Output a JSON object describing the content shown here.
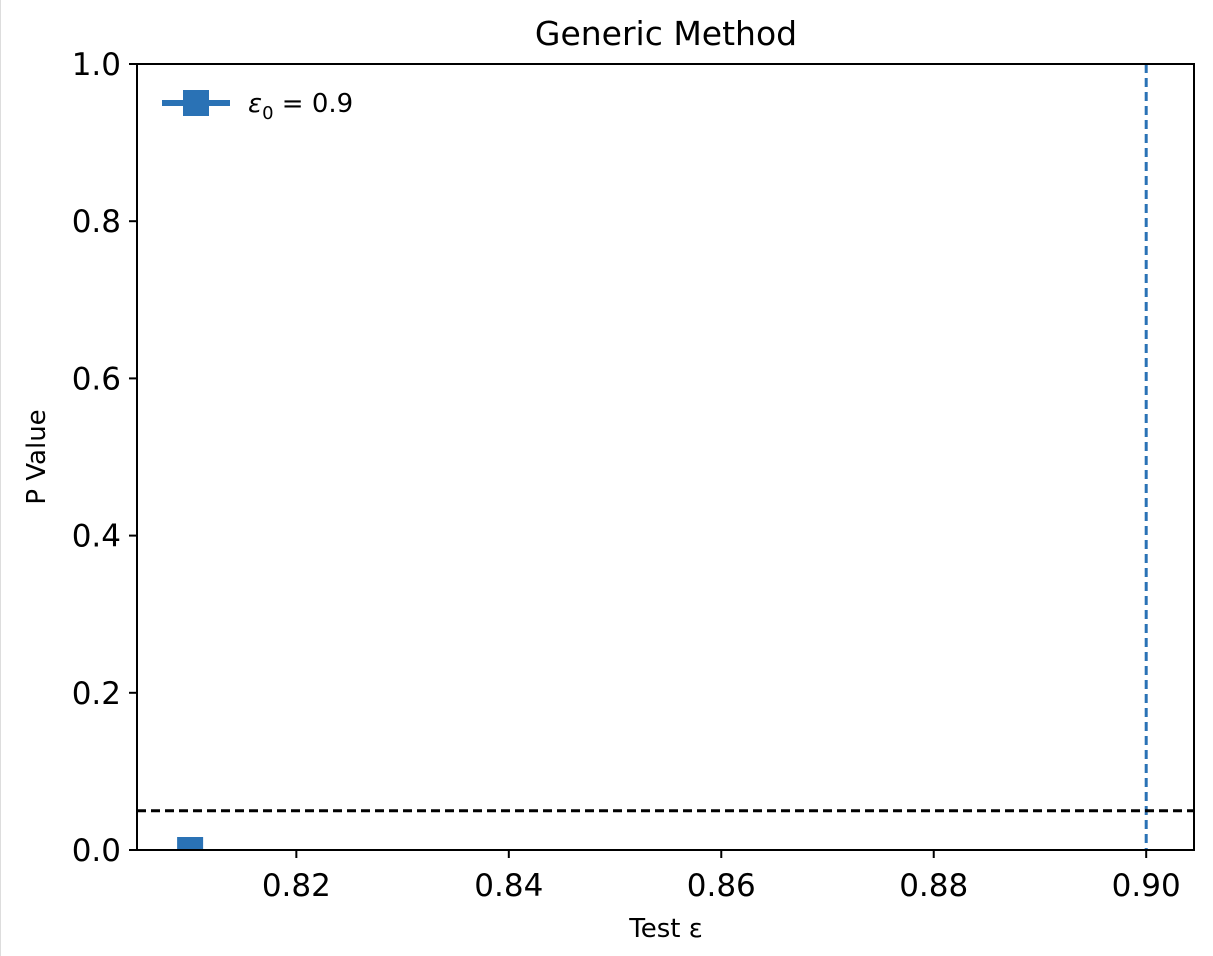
{
  "chart_data": {
    "type": "scatter",
    "title": "Generic Method",
    "xlabel": "Test ε",
    "ylabel": "P Value",
    "xlim": [
      0.805,
      0.9045
    ],
    "ylim": [
      0.0,
      1.0
    ],
    "xticks": [
      "0.82",
      "0.84",
      "0.86",
      "0.88",
      "0.90"
    ],
    "xtick_values": [
      0.82,
      0.84,
      0.86,
      0.88,
      0.9
    ],
    "yticks": [
      "0.0",
      "0.2",
      "0.4",
      "0.6",
      "0.8",
      "1.0"
    ],
    "ytick_values": [
      0.0,
      0.2,
      0.4,
      0.6,
      0.8,
      1.0
    ],
    "grid": false,
    "legend_position": "top-left",
    "series": [
      {
        "name_main": "ε",
        "name_sub": "0",
        "name_rest": " = 0.9",
        "color": "#2a72b5",
        "marker": "square",
        "points": [
          {
            "x": 0.81,
            "y": 0.0
          }
        ]
      }
    ],
    "reference_lines": [
      {
        "orientation": "vertical",
        "value": 0.9,
        "color": "#2a72b5",
        "style": "dashed"
      },
      {
        "orientation": "horizontal",
        "value": 0.05,
        "color": "#000000",
        "style": "dashed"
      }
    ]
  }
}
